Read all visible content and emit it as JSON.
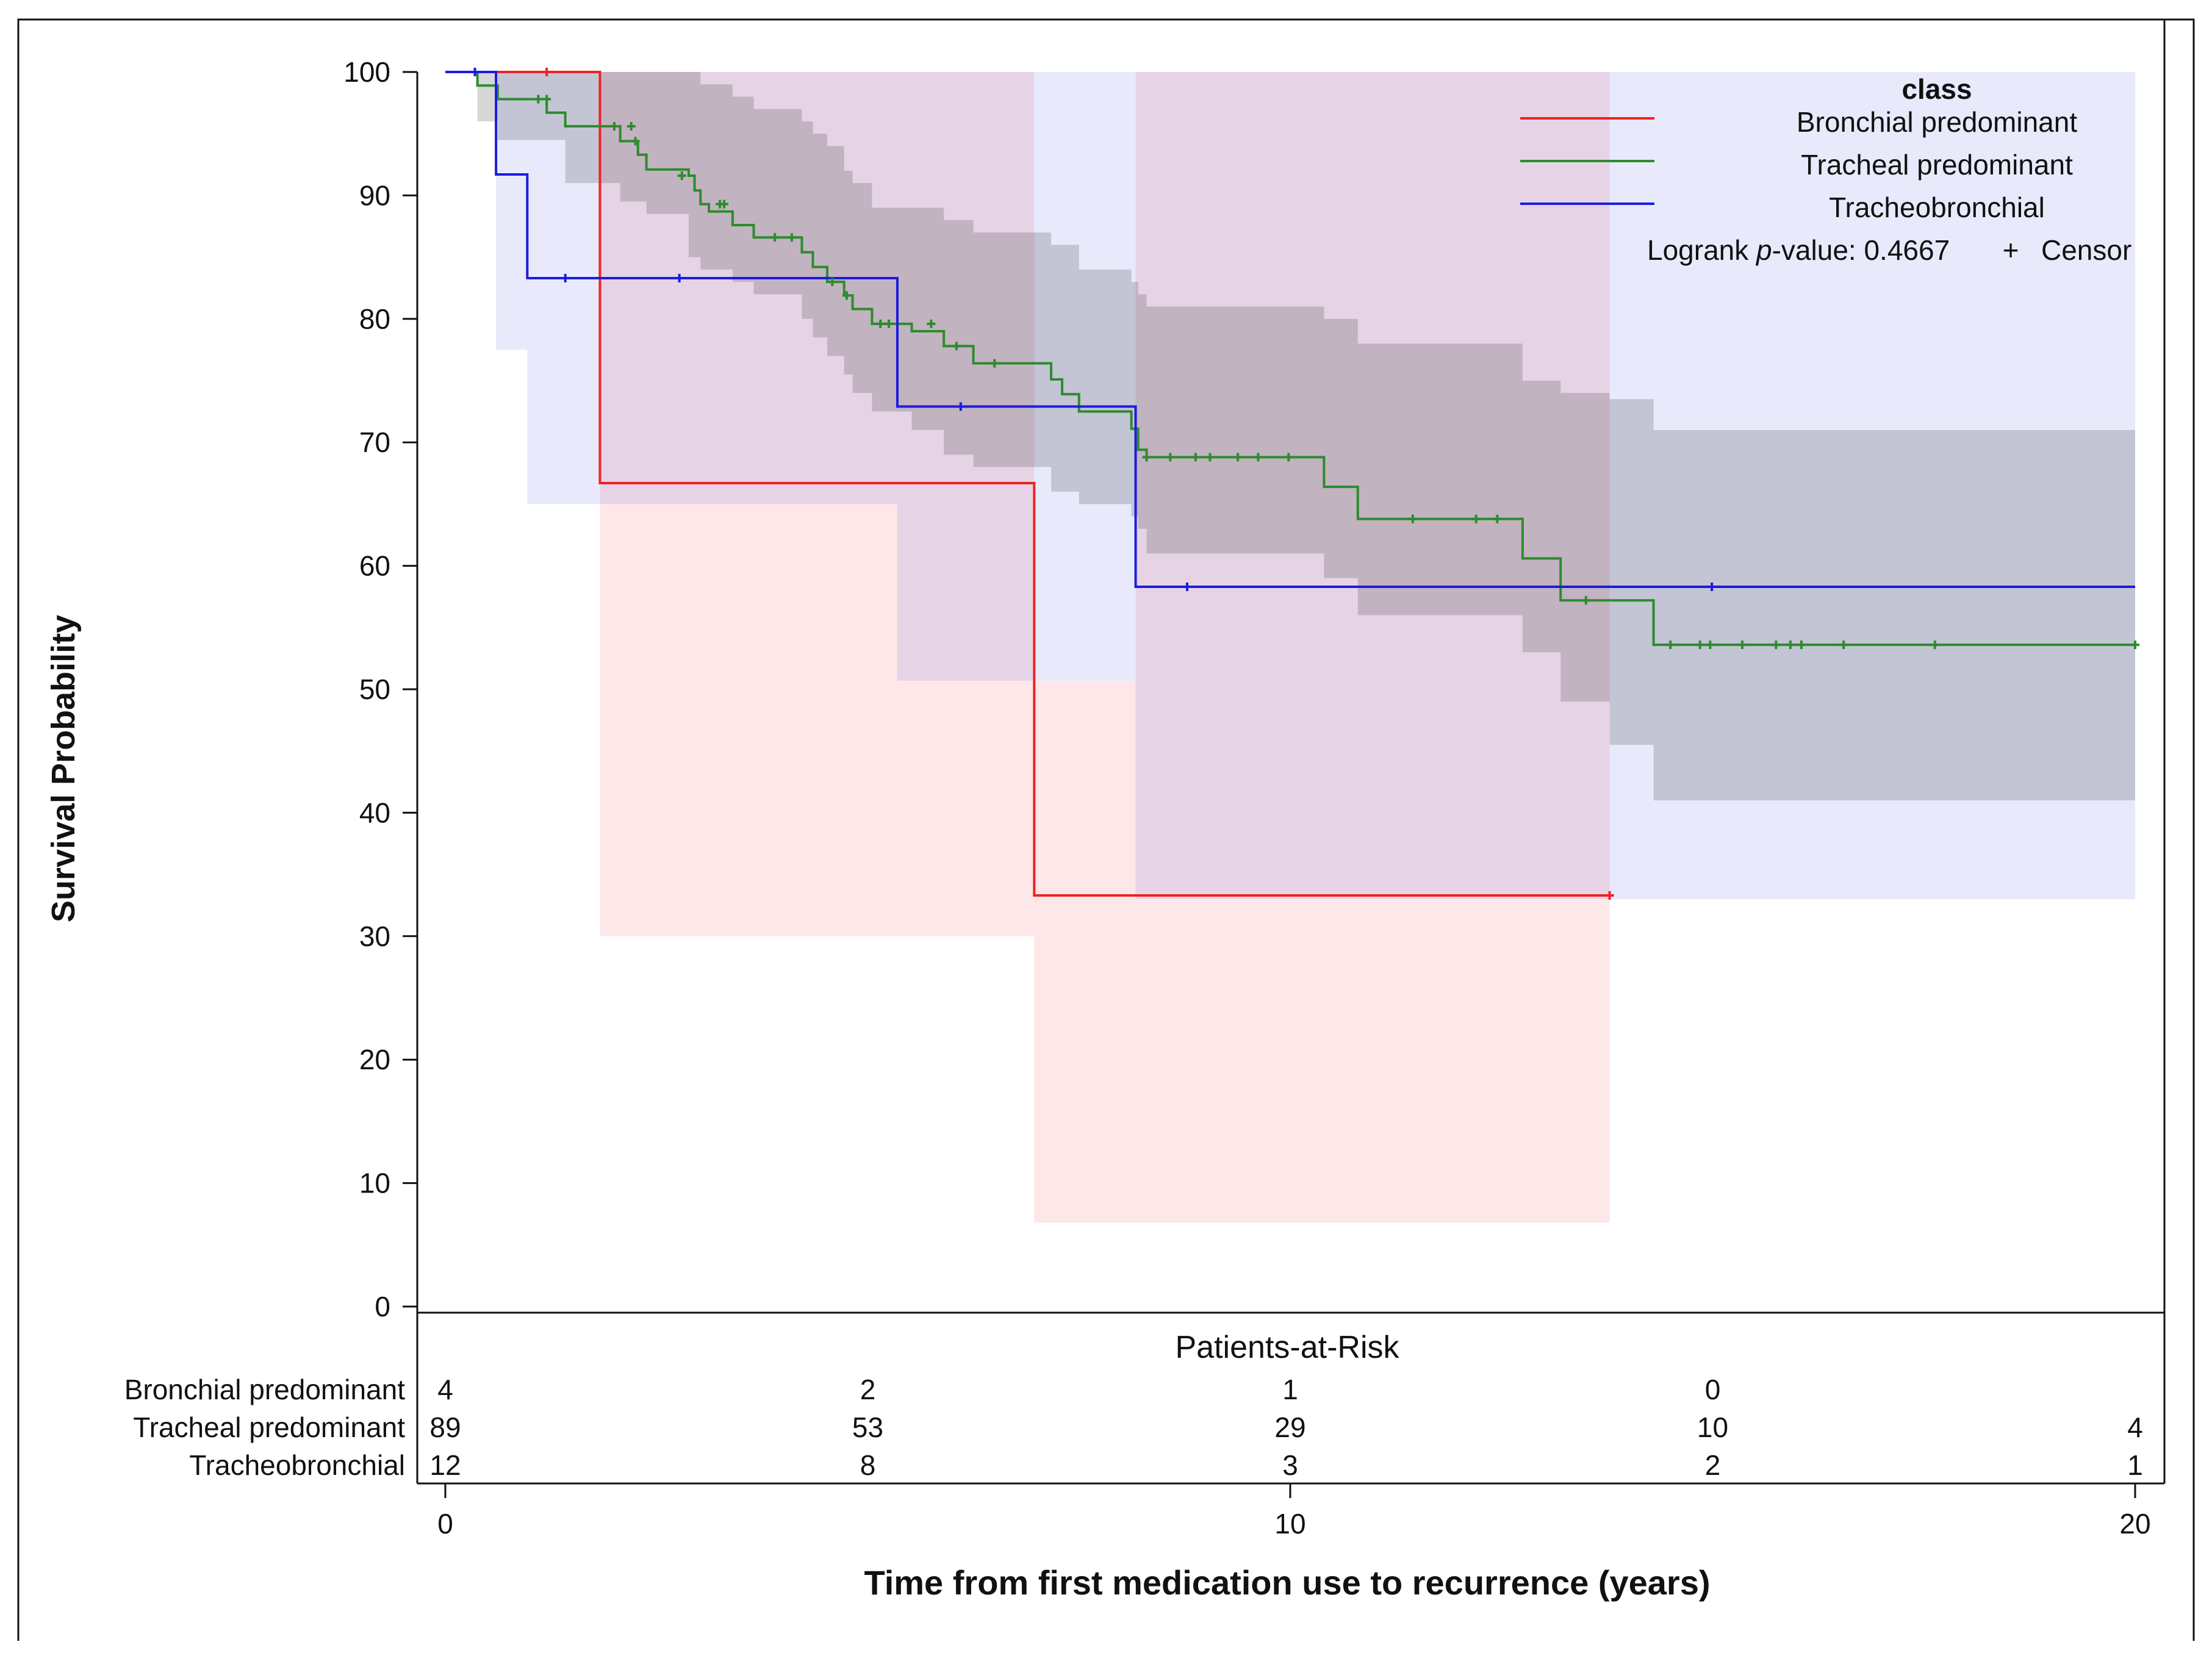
{
  "chart_data": {
    "type": "line",
    "subtype": "kaplan-meier",
    "xlabel": "Time from first medication use to recurrence (years)",
    "ylabel": "Survival Probability",
    "xlim": [
      0,
      20
    ],
    "ylim": [
      0,
      100
    ],
    "xticks": [
      0,
      10,
      20
    ],
    "yticks": [
      0,
      10,
      20,
      30,
      40,
      50,
      60,
      70,
      80,
      90,
      100
    ],
    "legend": {
      "title": "class",
      "position": "top-right",
      "logrank_prefix": "Logrank",
      "logrank_p": "p",
      "logrank_suffix": "-value: 0.4667",
      "censor_symbol": "+",
      "censor_label": "Censor"
    },
    "series": [
      {
        "name": "Bronchial predominant",
        "color": "#ee2222",
        "band_fill": "#fde3e5",
        "steps": [
          [
            0,
            100
          ],
          [
            1.83,
            66.7
          ],
          [
            6.97,
            33.3
          ],
          [
            13.78,
            33.3
          ]
        ],
        "band": [
          [
            0,
            100,
            100
          ],
          [
            1.83,
            100,
            30
          ],
          [
            6.97,
            50.7,
            6.8
          ],
          [
            8.17,
            100,
            6.8
          ],
          [
            13.78,
            100,
            6.8
          ]
        ],
        "censors": [
          [
            1.2,
            100
          ],
          [
            13.78,
            33.3
          ]
        ]
      },
      {
        "name": "Tracheal predominant",
        "color": "#2e8b2e",
        "band_fill": "#c9c9c9",
        "steps": [
          [
            0,
            100
          ],
          [
            0.38,
            98.9
          ],
          [
            0.62,
            97.8
          ],
          [
            1.2,
            96.7
          ],
          [
            1.42,
            95.6
          ],
          [
            2.07,
            94.4
          ],
          [
            2.28,
            93.3
          ],
          [
            2.38,
            92.1
          ],
          [
            2.88,
            91.6
          ],
          [
            2.95,
            90.4
          ],
          [
            3.02,
            89.3
          ],
          [
            3.12,
            88.7
          ],
          [
            3.4,
            87.6
          ],
          [
            3.65,
            86.6
          ],
          [
            4.22,
            85.4
          ],
          [
            4.35,
            84.2
          ],
          [
            4.52,
            83.0
          ],
          [
            4.72,
            81.9
          ],
          [
            4.82,
            80.8
          ],
          [
            5.05,
            79.6
          ],
          [
            5.52,
            79.0
          ],
          [
            5.9,
            77.8
          ],
          [
            6.25,
            76.4
          ],
          [
            7.17,
            75.1
          ],
          [
            7.3,
            73.9
          ],
          [
            7.5,
            72.5
          ],
          [
            8.12,
            71.1
          ],
          [
            8.2,
            69.4
          ],
          [
            8.3,
            68.8
          ],
          [
            10.4,
            66.4
          ],
          [
            10.8,
            63.8
          ],
          [
            12.75,
            60.6
          ],
          [
            13.2,
            57.2
          ],
          [
            14.3,
            53.6
          ],
          [
            20,
            53.6
          ]
        ],
        "band": [
          [
            0,
            100,
            100
          ],
          [
            0.38,
            100,
            96
          ],
          [
            0.62,
            100,
            94.5
          ],
          [
            1.42,
            100,
            91
          ],
          [
            2.07,
            100,
            89.5
          ],
          [
            2.38,
            100,
            88.5
          ],
          [
            2.88,
            100,
            85
          ],
          [
            3.02,
            99,
            84
          ],
          [
            3.4,
            98,
            83
          ],
          [
            3.65,
            97,
            82
          ],
          [
            4.22,
            96,
            80
          ],
          [
            4.35,
            95,
            78.5
          ],
          [
            4.52,
            94,
            77
          ],
          [
            4.72,
            92,
            75.5
          ],
          [
            4.82,
            91,
            74
          ],
          [
            5.05,
            89,
            72.5
          ],
          [
            5.52,
            89,
            71
          ],
          [
            5.9,
            88,
            69
          ],
          [
            6.25,
            87,
            68
          ],
          [
            7.17,
            86,
            66
          ],
          [
            7.5,
            84,
            65
          ],
          [
            8.12,
            83,
            64
          ],
          [
            8.2,
            82,
            63
          ],
          [
            8.3,
            81,
            61
          ],
          [
            10.4,
            80,
            59
          ],
          [
            10.8,
            78,
            56
          ],
          [
            12.75,
            75,
            53
          ],
          [
            13.2,
            74,
            49
          ],
          [
            13.78,
            73.5,
            45.5
          ],
          [
            14.3,
            71,
            41
          ],
          [
            20,
            71,
            41
          ]
        ],
        "censors": [
          [
            1.1,
            97.8
          ],
          [
            1.2,
            97.8
          ],
          [
            2,
            95.6
          ],
          [
            2.2,
            95.6
          ],
          [
            2.25,
            94.4
          ],
          [
            2.8,
            91.6
          ],
          [
            3.25,
            89.3
          ],
          [
            3.3,
            89.3
          ],
          [
            3.9,
            86.6
          ],
          [
            4.1,
            86.6
          ],
          [
            4.58,
            83
          ],
          [
            4.75,
            81.9
          ],
          [
            5.15,
            79.6
          ],
          [
            5.25,
            79.6
          ],
          [
            5.75,
            79.6
          ],
          [
            6.05,
            77.8
          ],
          [
            6.5,
            76.4
          ],
          [
            8.3,
            68.8
          ],
          [
            8.58,
            68.8
          ],
          [
            8.88,
            68.8
          ],
          [
            9.05,
            68.8
          ],
          [
            9.38,
            68.8
          ],
          [
            9.62,
            68.8
          ],
          [
            9.98,
            68.8
          ],
          [
            11.45,
            63.8
          ],
          [
            12.2,
            63.8
          ],
          [
            12.45,
            63.8
          ],
          [
            13.5,
            57.2
          ],
          [
            14.5,
            53.6
          ],
          [
            14.85,
            53.6
          ],
          [
            14.97,
            53.6
          ],
          [
            15.35,
            53.6
          ],
          [
            15.75,
            53.6
          ],
          [
            15.92,
            53.6
          ],
          [
            16.05,
            53.6
          ],
          [
            16.55,
            53.6
          ],
          [
            17.63,
            53.6
          ],
          [
            20,
            53.6
          ]
        ]
      },
      {
        "name": "Tracheobronchial",
        "color": "#1c1ce0",
        "band_fill": "#e4e6fb",
        "steps": [
          [
            0,
            100
          ],
          [
            0.6,
            91.7
          ],
          [
            0.97,
            83.3
          ],
          [
            5.35,
            72.9
          ],
          [
            8.17,
            58.3
          ],
          [
            20,
            58.3
          ]
        ],
        "band": [
          [
            0,
            100,
            100
          ],
          [
            0.6,
            100,
            77.5
          ],
          [
            0.97,
            100,
            65
          ],
          [
            5.35,
            100,
            50.7
          ],
          [
            8.17,
            100,
            33
          ],
          [
            20,
            100,
            33
          ]
        ],
        "censors": [
          [
            0.35,
            100
          ],
          [
            1.42,
            83.3
          ],
          [
            2.77,
            83.3
          ],
          [
            6.1,
            72.9
          ],
          [
            8.78,
            58.3
          ],
          [
            14.99,
            58.3
          ]
        ]
      }
    ],
    "risk_table": {
      "title": "Patients-at-Risk",
      "times": [
        0,
        5,
        10,
        15,
        20
      ],
      "rows": [
        {
          "label": "Bronchial predominant",
          "counts": [
            "4",
            "2",
            "1",
            "0",
            ""
          ]
        },
        {
          "label": "Tracheal predominant",
          "counts": [
            "89",
            "53",
            "29",
            "10",
            "4"
          ]
        },
        {
          "label": "Tracheobronchial",
          "counts": [
            "12",
            "8",
            "3",
            "2",
            "1"
          ]
        }
      ]
    }
  }
}
